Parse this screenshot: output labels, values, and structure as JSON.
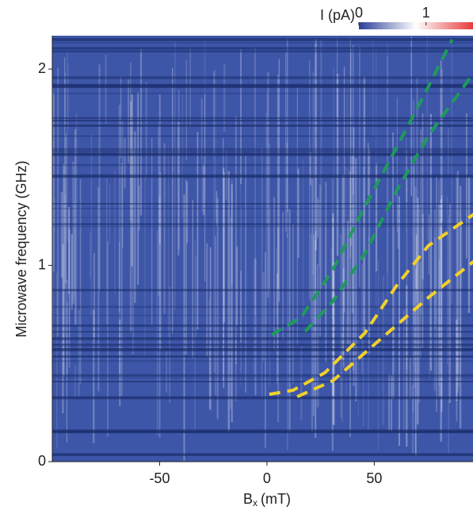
{
  "chart_data": {
    "type": "heatmap",
    "xlabel": "B",
    "xlabel_sub": "x",
    "xlabel_unit": "(mT)",
    "ylabel": "Microwave frequency (GHz)",
    "xlim": [
      -100,
      96
    ],
    "xticks": [
      -50,
      0,
      50
    ],
    "ylim": [
      0,
      2.17
    ],
    "yticks": [
      0,
      1,
      2
    ],
    "colorbar": {
      "label": "I (pA)",
      "clim": [
        0,
        1.7
      ],
      "ticks": [
        0,
        1
      ],
      "colors": [
        "#2b3f98",
        "#ffffff",
        "#e83a3a"
      ]
    },
    "background_color": "#3d56a8",
    "series": [
      {
        "color": "#1e9a5c",
        "x": [
          2.2,
          15.9,
          30.7,
          45.6,
          60.4,
          75.2,
          86.3
        ],
        "values": [
          0.646,
          0.735,
          0.978,
          1.3,
          1.6,
          1.91,
          2.15
        ]
      },
      {
        "color": "#1e9a5c",
        "x": [
          17.8,
          30.7,
          45.6,
          60.4,
          75.2,
          95.6
        ],
        "values": [
          0.663,
          0.816,
          1.06,
          1.38,
          1.66,
          1.97
        ]
      },
      {
        "color": "#f2d02a",
        "x": [
          1.1,
          12.2,
          27,
          45.6,
          60.4,
          75.2,
          96.3
        ],
        "values": [
          0.343,
          0.364,
          0.453,
          0.655,
          0.897,
          1.1,
          1.26
        ]
      },
      {
        "color": "#f2d02a",
        "x": [
          14.1,
          30.7,
          45.6,
          60.4,
          75.2,
          96.3
        ],
        "values": [
          0.331,
          0.412,
          0.554,
          0.695,
          0.836,
          1.02
        ]
      }
    ]
  }
}
